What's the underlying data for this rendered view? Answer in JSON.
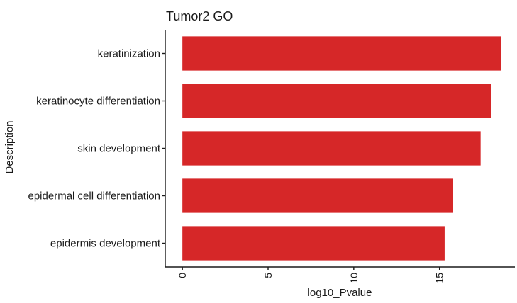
{
  "chart_data": {
    "type": "bar",
    "orientation": "horizontal",
    "title": "Tumor2 GO",
    "xlabel": "log10_Pvalue",
    "ylabel": "Description",
    "categories": [
      "keratinization",
      "keratinocyte differentiation",
      "skin development",
      "epidermal cell differentiation",
      "epidermis development"
    ],
    "values": [
      18.6,
      18.0,
      17.4,
      15.8,
      15.3
    ],
    "xlim": [
      -1.0,
      19.4
    ],
    "xticks": [
      0,
      5,
      10,
      15
    ],
    "bar_color": "#d62728",
    "grid": false,
    "legend": "none"
  }
}
